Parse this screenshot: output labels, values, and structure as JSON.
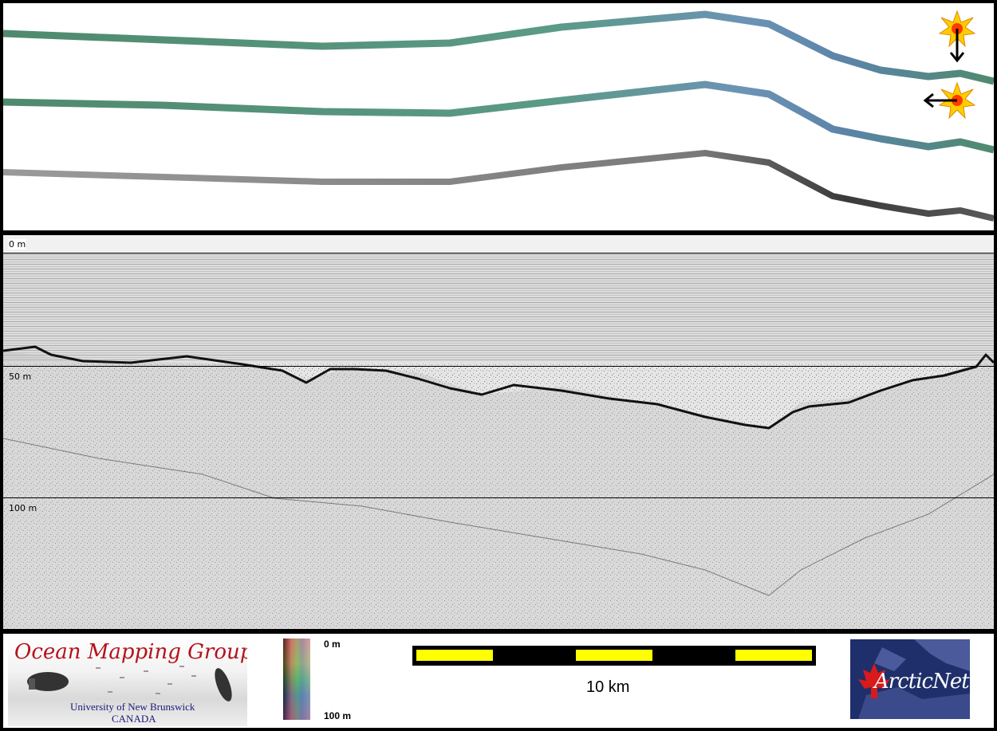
{
  "depth_labels": {
    "top": "0 m",
    "middle": "50 m",
    "bottom": "100 m"
  },
  "colorbar": {
    "top_label": "0 m",
    "bottom_label": "100 m"
  },
  "scale_bar": {
    "label": "10 km"
  },
  "logos": {
    "ocean_mapping": {
      "title": "Ocean Mapping Group",
      "university": "University of New Brunswick",
      "country": "CANADA"
    },
    "arcticnet": {
      "text": "ArcticNet"
    }
  },
  "colors": {
    "frame": "#000000",
    "scale_segment": "#ffff00",
    "arctic_bg": "#1f2f6b",
    "omg_red": "#b5121b"
  },
  "icons": [
    "sun-illumination-down-icon",
    "sun-illumination-left-icon",
    "maple-leaf-icon"
  ]
}
